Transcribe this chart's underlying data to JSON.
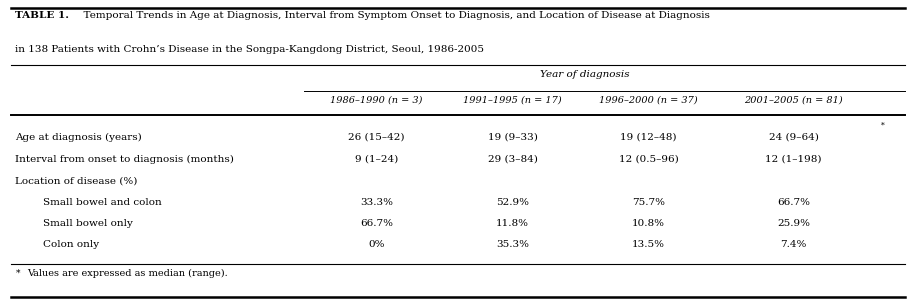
{
  "title_bold": "TABLE 1.",
  "title_line1_rest": "  Temporal Trends in Age at Diagnosis, Interval from Symptom Onset to Diagnosis, and Location of Disease at Diagnosis",
  "title_line2": "in 138 Patients with Crohn’s Disease in the Songpa-Kangdong District, Seoul, 1986-2005",
  "group_header": "Year of diagnosis",
  "col_headers": [
    "1986–1990 (n = 3)",
    "1991–1995 (n = 17)",
    "1996–2000 (n = 37)",
    "2001–2005 (n = 81)"
  ],
  "row_label_data": [
    {
      "label": "Age at diagnosis (years)",
      "star": true,
      "indent": false
    },
    {
      "label": "Interval from onset to diagnosis (months)",
      "star": true,
      "indent": false
    },
    {
      "label": "Location of disease (%)",
      "star": false,
      "indent": false
    },
    {
      "label": "Small bowel and colon",
      "star": false,
      "indent": true
    },
    {
      "label": "Small bowel only",
      "star": false,
      "indent": true
    },
    {
      "label": "Colon only",
      "star": false,
      "indent": true
    }
  ],
  "data": [
    [
      "26 (15–42)",
      "19 (9–33)",
      "19 (12–48)",
      "24 (9–64)"
    ],
    [
      "9 (1–24)",
      "29 (3–84)",
      "12 (0.5–96)",
      "12 (1–198)"
    ],
    [
      "",
      "",
      "",
      ""
    ],
    [
      "33.3%",
      "52.9%",
      "75.7%",
      "66.7%"
    ],
    [
      "66.7%",
      "11.8%",
      "10.8%",
      "25.9%"
    ],
    [
      "0%",
      "35.3%",
      "13.5%",
      "7.4%"
    ]
  ],
  "footnote_star": "*",
  "footnote_rest": "Values are expressed as median (range).",
  "bg_color": "#ffffff",
  "text_color": "#000000",
  "col_data_centers": [
    0.415,
    0.565,
    0.715,
    0.875
  ],
  "col_label_divider": 0.335
}
